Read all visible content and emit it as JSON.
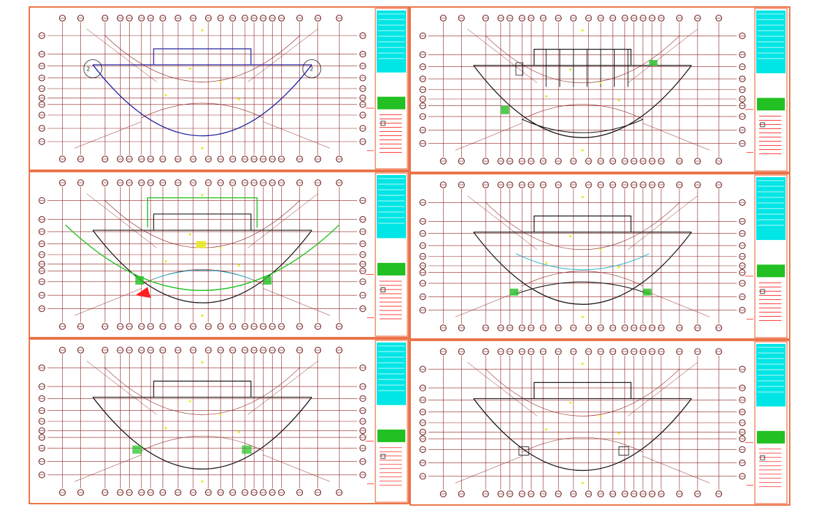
{
  "sheets": [
    {
      "id": "sheet-1",
      "plan": "roof",
      "cells": [
        "2",
        "2"
      ]
    },
    {
      "id": "sheet-2",
      "plan": "floor-a"
    },
    {
      "id": "sheet-3",
      "plan": "floor-b"
    },
    {
      "id": "sheet-4",
      "plan": "floor-c"
    },
    {
      "id": "sheet-5",
      "plan": "floor-d"
    },
    {
      "id": "sheet-6",
      "plan": "floor-e"
    }
  ],
  "colors": {
    "frame": "#e8501c",
    "grid": "#8b1a1a",
    "axis_bubble": "#6b1010",
    "outline": "#1a1a1a",
    "roof_line": "#1a1aa0",
    "landscape": "#22c022",
    "title_cyan": "#00e5e5",
    "dim_red": "#ff2020",
    "accent_yellow": "#e8e820",
    "arc_cyan": "#20b0d0"
  }
}
